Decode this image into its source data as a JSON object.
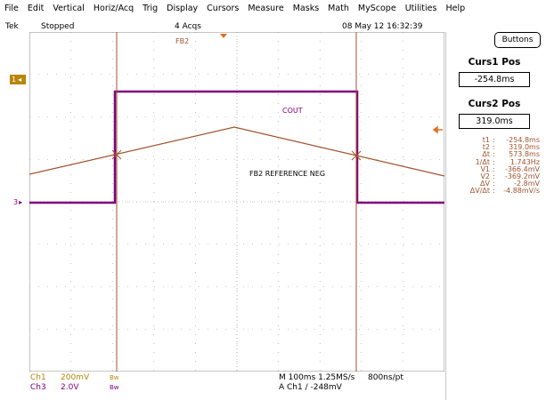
{
  "menu": {
    "file": "File",
    "edit": "Edit",
    "vertical": "Vertical",
    "horiz": "Horiz/Acq",
    "trig": "Trig",
    "display": "Display",
    "cursors": "Cursors",
    "measure": "Measure",
    "masks": "Masks",
    "math": "Math",
    "myscope": "MyScope",
    "utilities": "Utilities",
    "help": "Help"
  },
  "status": {
    "brand": "Tek",
    "state": "Stopped",
    "acqs": "4 Acqs",
    "datetime": "08 May 12 16:32:39"
  },
  "buttons_label": "Buttons",
  "cursor_panel": {
    "curs1_title": "Curs1 Pos",
    "curs1_value": "-254.8ms",
    "curs2_title": "Curs2 Pos",
    "curs2_value": "319.0ms"
  },
  "readouts": [
    {
      "key": "t1",
      "value": "-254.8ms"
    },
    {
      "key": "t2",
      "value": "319.0ms"
    },
    {
      "key": "Δt",
      "value": "573.8ms"
    },
    {
      "key": "1/Δt",
      "value": "1.743Hz"
    },
    {
      "key": "V1",
      "value": "-366.4mV"
    },
    {
      "key": "V2",
      "value": "-369.2mV"
    },
    {
      "key": "ΔV",
      "value": "-2.8mV"
    },
    {
      "key": "ΔV/Δt",
      "value": "-4.88mV/s"
    }
  ],
  "waveform_labels": {
    "fb2_top": "FB2",
    "cout": "COUT",
    "fb2_ref": "FB2 REFERENCE NEG",
    "ch1_marker": "1",
    "ch3_marker": "3"
  },
  "bottom": {
    "ch1_name": "Ch1",
    "ch1_scale": "200mV",
    "ch1_bw": "Bw",
    "ch3_name": "Ch3",
    "ch3_scale": "2.0V",
    "ch3_bw": "Bw",
    "timebase": "M 100ms 1.25MS/s",
    "record": "800ns/pt",
    "trigger": "A  Ch1  ∕  -248mV"
  },
  "colors": {
    "ch1": "#a0522d",
    "ch3": "#800080",
    "cursor": "#a0522d",
    "grid": "#8c8c8c"
  }
}
